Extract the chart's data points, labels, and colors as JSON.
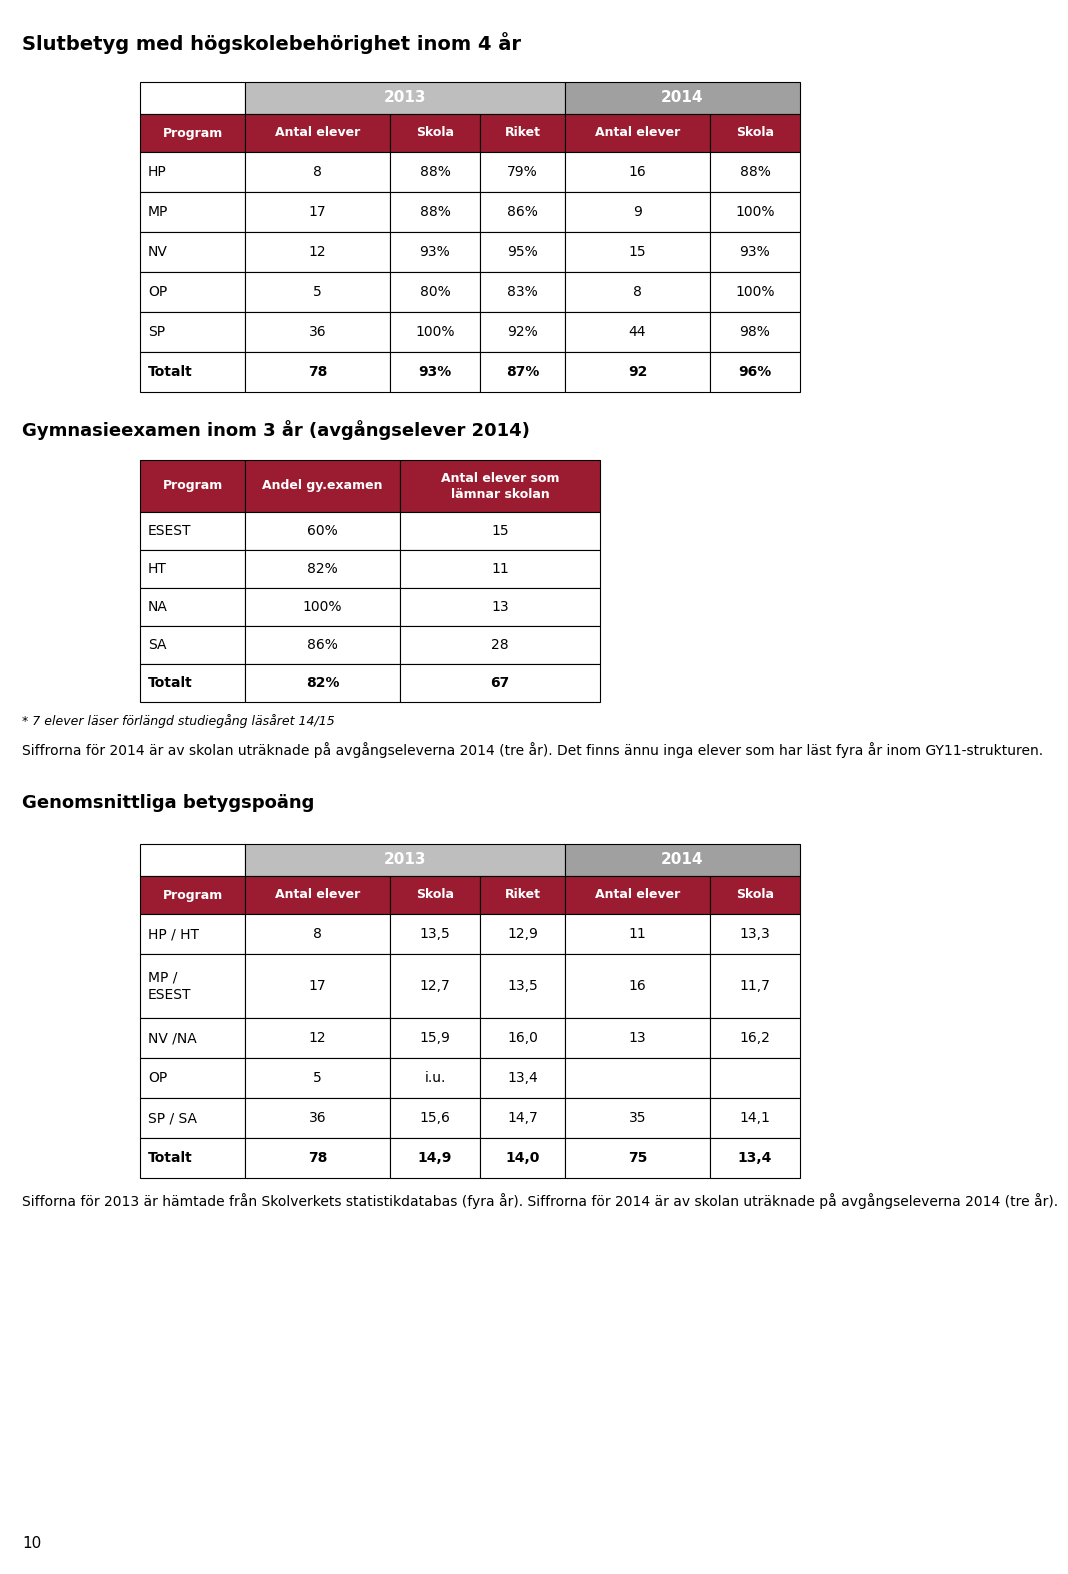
{
  "title1": "Slutbetyg med högskolebehörighet inom 4 år",
  "table1_year_headers": [
    "2013",
    "2014"
  ],
  "table1_col_headers": [
    "Program",
    "Antal elever",
    "Skola",
    "Riket",
    "Antal elever",
    "Skola"
  ],
  "table1_rows": [
    [
      "HP",
      "8",
      "88%",
      "79%",
      "16",
      "88%"
    ],
    [
      "MP",
      "17",
      "88%",
      "86%",
      "9",
      "100%"
    ],
    [
      "NV",
      "12",
      "93%",
      "95%",
      "15",
      "93%"
    ],
    [
      "OP",
      "5",
      "80%",
      "83%",
      "8",
      "100%"
    ],
    [
      "SP",
      "36",
      "100%",
      "92%",
      "44",
      "98%"
    ],
    [
      "Totalt",
      "78",
      "93%",
      "87%",
      "92",
      "96%"
    ]
  ],
  "title2": "Gymnasieexamen inom 3 år (avgångselever 2014)",
  "table2_col_headers": [
    "Program",
    "Andel gy.examen",
    "Antal elever som\nlämnar skolan"
  ],
  "table2_rows": [
    [
      "ESEST",
      "60%",
      "15"
    ],
    [
      "HT",
      "82%",
      "11"
    ],
    [
      "NA",
      "100%",
      "13"
    ],
    [
      "SA",
      "86%",
      "28"
    ],
    [
      "Totalt",
      "82%",
      "67"
    ]
  ],
  "note1": "* 7 elever läser förlängd studiegång läsåret 14/15",
  "note2": "Siffrorna för 2014 är av skolan uträknade på avgångseleverna 2014 (tre år). Det finns ännu inga elever som har läst fyra år inom GY11-strukturen.",
  "title3": "Genomsnittliga betygspoäng",
  "table3_year_headers": [
    "2013",
    "2014"
  ],
  "table3_col_headers": [
    "Program",
    "Antal elever",
    "Skola",
    "Riket",
    "Antal elever",
    "Skola"
  ],
  "table3_rows": [
    [
      "HP / HT",
      "8",
      "13,5",
      "12,9",
      "11",
      "13,3"
    ],
    [
      "MP /\nESEST",
      "17",
      "12,7",
      "13,5",
      "16",
      "11,7"
    ],
    [
      "NV /NA",
      "12",
      "15,9",
      "16,0",
      "13",
      "16,2"
    ],
    [
      "OP",
      "5",
      "i.u.",
      "13,4",
      "",
      ""
    ],
    [
      "SP / SA",
      "36",
      "15,6",
      "14,7",
      "35",
      "14,1"
    ],
    [
      "Totalt",
      "78",
      "14,9",
      "14,0",
      "75",
      "13,4"
    ]
  ],
  "note3": "Sifforna för 2013 är hämtade från Skolverkets statistikdatabas (fyra år). Siffrorna för 2014 är av skolan uträknade på avgångseleverna 2014 (tre år).",
  "page_number": "10",
  "crimson": "#9B1C31",
  "light_gray": "#BEBEBE",
  "dark_gray": "#A0A0A0",
  "white": "#FFFFFF",
  "black": "#000000"
}
